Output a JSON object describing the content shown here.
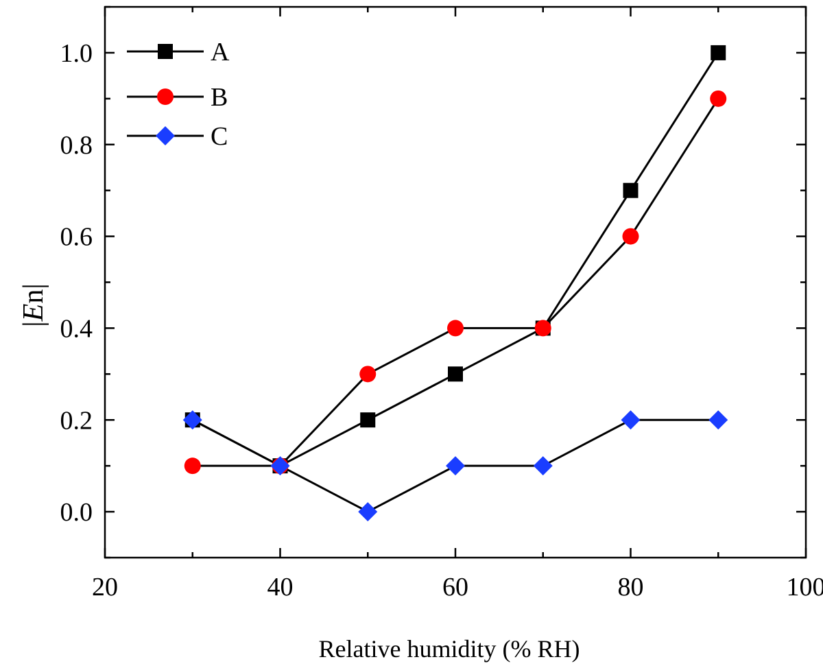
{
  "chart_data": {
    "type": "line",
    "title": "",
    "xlabel": "Relative humidity (% RH)",
    "ylabel_bars": "||",
    "ylabel_italic": "E",
    "ylabel_rest": "n",
    "xlim": [
      20,
      100
    ],
    "ylim": [
      -0.1,
      1.1
    ],
    "xticks": [
      20,
      40,
      60,
      80,
      100
    ],
    "xtick_labels": [
      "20",
      "40",
      "60",
      "80",
      "100"
    ],
    "yticks": [
      0.0,
      0.2,
      0.4,
      0.6,
      0.8,
      1.0
    ],
    "ytick_labels": [
      "0.0",
      "0.2",
      "0.4",
      "0.6",
      "0.8",
      "1.0"
    ],
    "grid": false,
    "legend_position": "top-left",
    "x": [
      30,
      40,
      50,
      60,
      70,
      80,
      90
    ],
    "series": [
      {
        "name": "A",
        "marker": "square",
        "color": "#000000",
        "values": [
          0.2,
          0.1,
          0.2,
          0.3,
          0.4,
          0.7,
          1.0
        ]
      },
      {
        "name": "B",
        "marker": "circle",
        "color": "#ff0000",
        "values": [
          0.1,
          0.1,
          0.3,
          0.4,
          0.4,
          0.6,
          0.9
        ]
      },
      {
        "name": "C",
        "marker": "diamond",
        "color": "#1a3dff",
        "values": [
          0.2,
          0.1,
          0.0,
          0.1,
          0.1,
          0.2,
          0.2
        ]
      }
    ]
  }
}
